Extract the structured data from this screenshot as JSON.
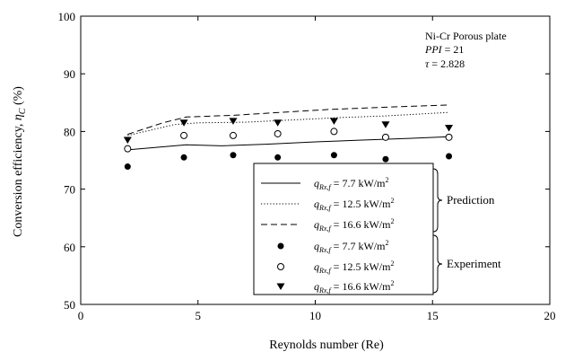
{
  "chart_data": {
    "type": "scatter",
    "xlabel": "Reynolds number (Re)",
    "ylabel": "Conversion efficiency, ",
    "ylabel_symbol": "η",
    "ylabel_sub": "C",
    "ylabel_unit": " (%)",
    "xlim": [
      0,
      20
    ],
    "ylim": [
      50,
      100
    ],
    "xticks": [
      0,
      5,
      10,
      15,
      20
    ],
    "yticks": [
      50,
      60,
      70,
      80,
      90,
      100
    ],
    "grid": false,
    "legend_position": "bottom-right",
    "annotation": {
      "line1": "Ni-Cr Porous plate",
      "line2_var": "PPI",
      "line2_val": " = 21",
      "line3_var": "τ",
      "line3_val": " = 2.828"
    },
    "group_labels": {
      "prediction": "Prediction",
      "experiment": "Experiment"
    },
    "legend_label_prefix": "q",
    "legend_label_sub": "Rx,f",
    "series": [
      {
        "group": "prediction",
        "style": "solid",
        "q": " = 7.7 kW/m",
        "exp": "2",
        "x": [
          2.0,
          4.5,
          6.0,
          8.0,
          10.0,
          12.0,
          14.0,
          15.7
        ],
        "y": [
          76.8,
          77.7,
          77.5,
          77.8,
          78.2,
          78.5,
          78.8,
          79.1
        ]
      },
      {
        "group": "prediction",
        "style": "dotted",
        "q": " = 12.5 kW/m",
        "exp": "2",
        "x": [
          2.0,
          4.0,
          5.0,
          7.0,
          9.0,
          11.0,
          13.0,
          15.7
        ],
        "y": [
          79.3,
          81.2,
          81.5,
          81.6,
          82.0,
          82.4,
          82.7,
          83.3
        ]
      },
      {
        "group": "prediction",
        "style": "dashed",
        "q": " = 16.6 kW/m",
        "exp": "2",
        "x": [
          2.0,
          3.5,
          4.5,
          6.5,
          8.5,
          10.5,
          13.0,
          15.7
        ],
        "y": [
          79.5,
          81.5,
          82.5,
          82.8,
          83.3,
          83.8,
          84.2,
          84.6
        ]
      },
      {
        "group": "experiment",
        "marker": "filled-circle",
        "q": " = 7.7 kW/m",
        "exp": "2",
        "x": [
          2.0,
          4.4,
          6.5,
          8.4,
          10.8,
          13.0,
          15.7
        ],
        "y": [
          73.9,
          75.5,
          75.9,
          75.5,
          75.9,
          75.2,
          75.7
        ]
      },
      {
        "group": "experiment",
        "marker": "open-circle",
        "q": " = 12.5 kW/m",
        "exp": "2",
        "x": [
          2.0,
          4.4,
          6.5,
          8.4,
          10.8,
          13.0,
          15.7
        ],
        "y": [
          77.0,
          79.3,
          79.3,
          79.6,
          80.0,
          79.0,
          79.0
        ]
      },
      {
        "group": "experiment",
        "marker": "filled-triangle-down",
        "q": " = 16.6 kW/m",
        "exp": "2",
        "x": [
          2.0,
          4.4,
          6.5,
          8.4,
          10.8,
          13.0,
          15.7
        ],
        "y": [
          78.5,
          81.5,
          81.8,
          81.5,
          81.8,
          81.2,
          80.6
        ]
      }
    ]
  }
}
